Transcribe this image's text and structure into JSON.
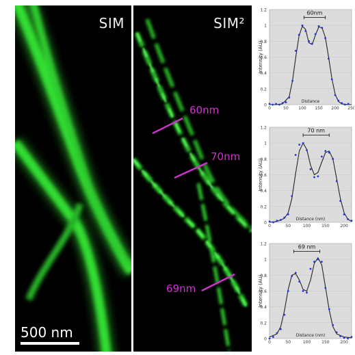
{
  "panels": {
    "sim": {
      "title": "SIM",
      "scale_bar": "500 nm"
    },
    "sim2": {
      "title": "SIM²"
    }
  },
  "measurements": [
    "60nm",
    "70nm",
    "69nm"
  ],
  "colors": {
    "filament": "#33dd33",
    "marker": "#cc33cc",
    "curve": "#222222",
    "points": "#2233dd",
    "plot_bg": "#dcdcdc"
  },
  "chart_data": [
    {
      "type": "line",
      "annotation": "60nm",
      "xlabel": "Distance",
      "ylabel": "Intensity (AU)",
      "xlim": [
        0,
        250
      ],
      "ylim": [
        0,
        1.2
      ],
      "xticks": [
        0,
        50,
        100,
        150,
        200,
        250
      ],
      "yticks": [
        0,
        0.2,
        0.4,
        0.6,
        0.8,
        1,
        1.2
      ],
      "fit": {
        "x": [
          0,
          20,
          40,
          60,
          70,
          80,
          90,
          100,
          110,
          120,
          130,
          140,
          150,
          160,
          170,
          180,
          190,
          200,
          210,
          220,
          240,
          250
        ],
        "y": [
          0,
          0,
          0.01,
          0.1,
          0.3,
          0.6,
          0.87,
          0.99,
          0.95,
          0.78,
          0.76,
          0.88,
          0.98,
          0.97,
          0.85,
          0.6,
          0.33,
          0.13,
          0.04,
          0.01,
          0,
          0
        ]
      },
      "points": {
        "x": [
          0,
          10,
          20,
          30,
          40,
          50,
          60,
          70,
          80,
          90,
          100,
          110,
          120,
          130,
          140,
          150,
          160,
          170,
          180,
          190,
          200,
          210,
          220,
          230,
          240
        ],
        "y": [
          0.01,
          0,
          0.01,
          0,
          0.02,
          0.03,
          0.09,
          0.3,
          0.68,
          0.88,
          1.0,
          0.93,
          0.8,
          0.77,
          0.89,
          0.99,
          0.97,
          0.84,
          0.58,
          0.32,
          0.12,
          0.05,
          0.02,
          0,
          0.01
        ]
      },
      "bracket": [
        105,
        170
      ]
    },
    {
      "type": "line",
      "annotation": "70 nm",
      "xlabel": "Distance (nm)",
      "ylabel": "Intensity (AU)",
      "xlim": [
        0,
        220
      ],
      "ylim": [
        0,
        1.2
      ],
      "xticks": [
        0,
        50,
        100,
        150,
        200
      ],
      "yticks": [
        0,
        0.2,
        0.4,
        0.6,
        0.8,
        1,
        1.2
      ],
      "fit": {
        "x": [
          0,
          20,
          40,
          50,
          60,
          70,
          80,
          90,
          100,
          110,
          120,
          130,
          140,
          150,
          160,
          170,
          180,
          190,
          200,
          210,
          220
        ],
        "y": [
          0,
          0.01,
          0.05,
          0.12,
          0.3,
          0.62,
          0.9,
          1.0,
          0.92,
          0.72,
          0.6,
          0.63,
          0.76,
          0.88,
          0.9,
          0.8,
          0.55,
          0.3,
          0.12,
          0.04,
          0.01
        ]
      },
      "points": {
        "x": [
          0,
          10,
          20,
          30,
          40,
          50,
          60,
          70,
          80,
          90,
          100,
          110,
          120,
          130,
          140,
          150,
          160,
          170,
          180,
          190,
          200,
          210,
          220
        ],
        "y": [
          0.01,
          0,
          0.02,
          0.03,
          0.06,
          0.1,
          0.33,
          0.85,
          0.98,
          1.0,
          0.91,
          0.67,
          0.57,
          0.58,
          0.83,
          0.9,
          0.88,
          0.8,
          0.52,
          0.27,
          0.1,
          0.04,
          0.02
        ]
      },
      "bracket": [
        90,
        160
      ]
    },
    {
      "type": "line",
      "annotation": "69 nm",
      "xlabel": "Distance (nm)",
      "ylabel": "Intensity (AU)",
      "xlim": [
        0,
        220
      ],
      "ylim": [
        0,
        1.2
      ],
      "xticks": [
        0,
        50,
        100,
        150,
        200
      ],
      "yticks": [
        0,
        0.2,
        0.4,
        0.6,
        0.8,
        1,
        1.2
      ],
      "fit": {
        "x": [
          0,
          20,
          30,
          40,
          50,
          60,
          70,
          80,
          90,
          100,
          110,
          120,
          130,
          140,
          150,
          160,
          170,
          180,
          200,
          220
        ],
        "y": [
          0.02,
          0.06,
          0.15,
          0.35,
          0.62,
          0.8,
          0.82,
          0.74,
          0.62,
          0.6,
          0.74,
          0.95,
          1.02,
          0.93,
          0.65,
          0.36,
          0.15,
          0.06,
          0.02,
          0.01
        ]
      },
      "points": {
        "x": [
          0,
          10,
          20,
          30,
          40,
          50,
          60,
          70,
          80,
          90,
          100,
          110,
          120,
          130,
          140,
          150,
          160,
          170,
          180,
          190,
          200,
          210,
          220
        ],
        "y": [
          0,
          0.02,
          0.07,
          0.12,
          0.3,
          0.6,
          0.79,
          0.83,
          0.72,
          0.6,
          0.58,
          0.88,
          0.97,
          1.0,
          0.97,
          0.64,
          0.37,
          0.17,
          0.08,
          0.03,
          0.01,
          0,
          0.02
        ]
      },
      "bracket": [
        65,
        135
      ]
    }
  ]
}
